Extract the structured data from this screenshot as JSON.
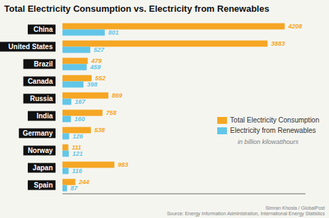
{
  "chart_data": {
    "type": "bar",
    "orientation": "horizontal",
    "title": "Total Electricity Consumption vs. Electricity from Renewables",
    "subtitle": "in billion kilowatthours",
    "annotations": [
      "Simran Khosla / GlobalPost\nSource: Energy Information Administration, International Energy Statistics"
    ],
    "categories": [
      "China",
      "United States",
      "Brazil",
      "Canada",
      "Russia",
      "India",
      "Germany",
      "Norway",
      "Japan",
      "Spain"
    ],
    "series": [
      {
        "name": "Total Electricity Consumption",
        "color": "#F5A623",
        "values": [
          4208,
          3883,
          479,
          552,
          869,
          758,
          538,
          111,
          983,
          244
        ]
      },
      {
        "name": "Electricity from Renewables",
        "color": "#62C6E8",
        "values": [
          801,
          527,
          459,
          398,
          167,
          160,
          126,
          121,
          116,
          87
        ]
      }
    ],
    "xlim": [
      0,
      4600
    ],
    "data_labels": true,
    "tick_labels": "y",
    "grid": false
  }
}
